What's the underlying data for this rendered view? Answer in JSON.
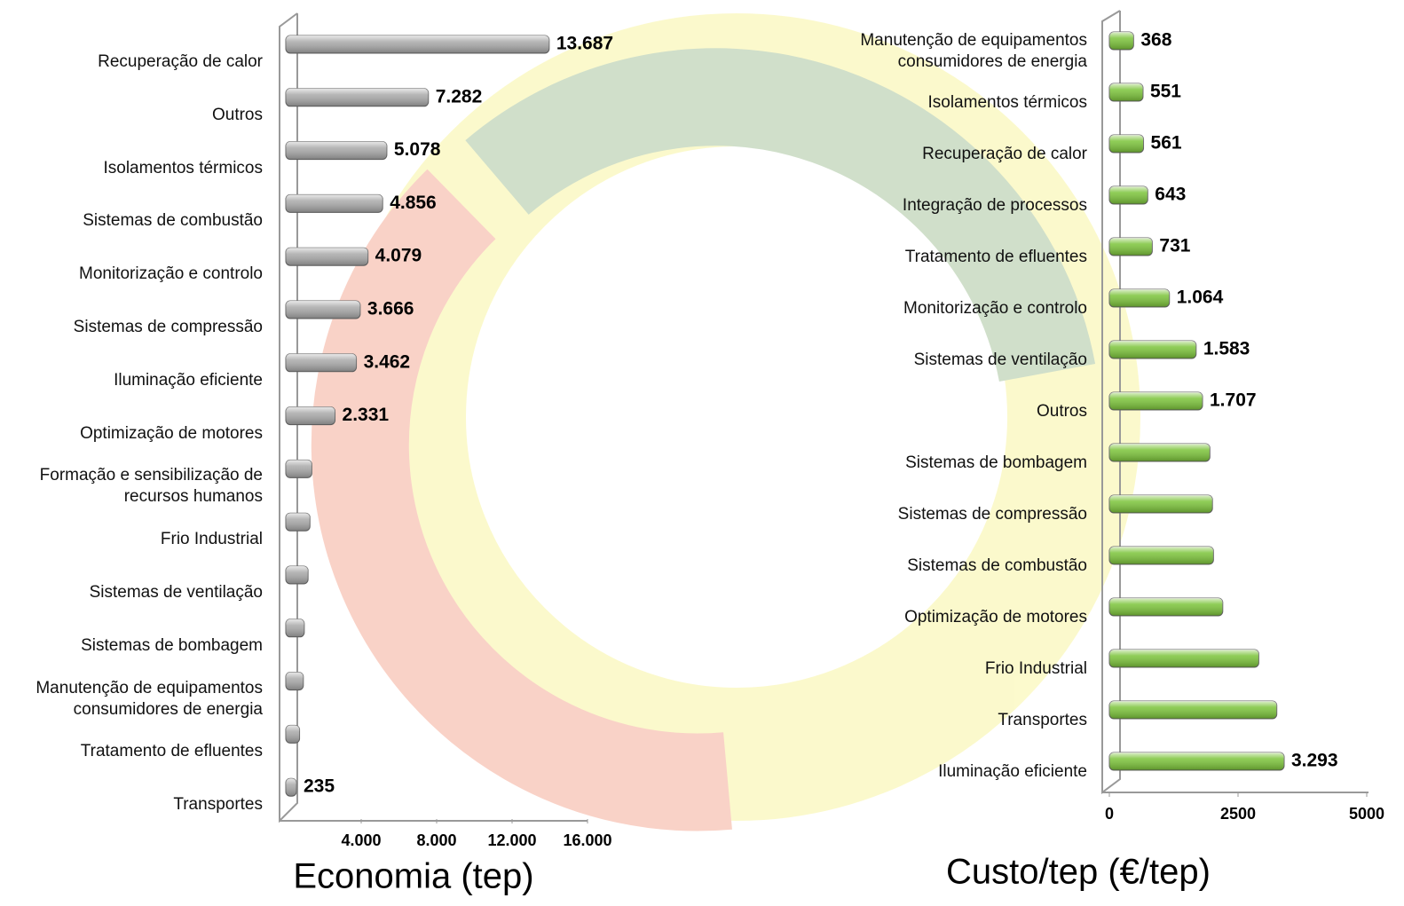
{
  "chart_data": [
    {
      "type": "bar",
      "orientation": "horizontal",
      "title": "Economia (tep)",
      "categories": [
        "Recuperação de calor",
        "Outros",
        "Isolamentos térmicos",
        "Sistemas de combustão",
        "Monitorização e controlo",
        "Sistemas de compressão",
        "Iluminação eficiente",
        "Optimização de motores",
        "Formação e sensibilização de recursos humanos",
        "Frio Industrial",
        "Sistemas de ventilação",
        "Sistemas de bombagem",
        "Manutenção de equipamentos consumidores de energia",
        "Tratamento de efluentes",
        "Transportes"
      ],
      "values": [
        13687,
        7282,
        5078,
        4856,
        4079,
        3666,
        3462,
        2331,
        1100,
        1000,
        900,
        700,
        650,
        450,
        235
      ],
      "value_labels": [
        "13.687",
        "7.282",
        "5.078",
        "4.856",
        "4.079",
        "3.666",
        "3.462",
        "2.331",
        null,
        null,
        null,
        null,
        null,
        null,
        "235"
      ],
      "color": "#a9a9a9",
      "xlim": [
        0,
        16000
      ],
      "xticks": [
        {
          "value": 4000,
          "label": "4.000"
        },
        {
          "value": 8000,
          "label": "8.000"
        },
        {
          "value": 12000,
          "label": "12.000"
        },
        {
          "value": 16000,
          "label": "16.000"
        }
      ]
    },
    {
      "type": "bar",
      "orientation": "horizontal",
      "title": "Custo/tep (€/tep)",
      "categories": [
        "Manutenção de equipamentos consumidores de energia",
        "Isolamentos térmicos",
        "Recuperação de calor",
        "Integração de processos",
        "Tratamento de efluentes",
        "Monitorização e controlo",
        "Sistemas de ventilação",
        "Outros",
        "Sistemas de bombagem",
        "Sistemas de compressão",
        "Sistemas de combustão",
        "Optimização de motores",
        "Frio Industrial",
        "Transportes",
        "Iluminação eficiente"
      ],
      "values": [
        368,
        551,
        561,
        643,
        731,
        1064,
        1583,
        1707,
        1850,
        1900,
        1920,
        2100,
        2800,
        3150,
        3293
      ],
      "value_labels": [
        "368",
        "551",
        "561",
        "643",
        "731",
        "1.064",
        "1.583",
        "1.707",
        null,
        null,
        null,
        null,
        null,
        null,
        "3.293"
      ],
      "color": "#7cc43a",
      "xlim": [
        0,
        5000
      ],
      "xticks": [
        0,
        2500,
        5000
      ]
    }
  ]
}
